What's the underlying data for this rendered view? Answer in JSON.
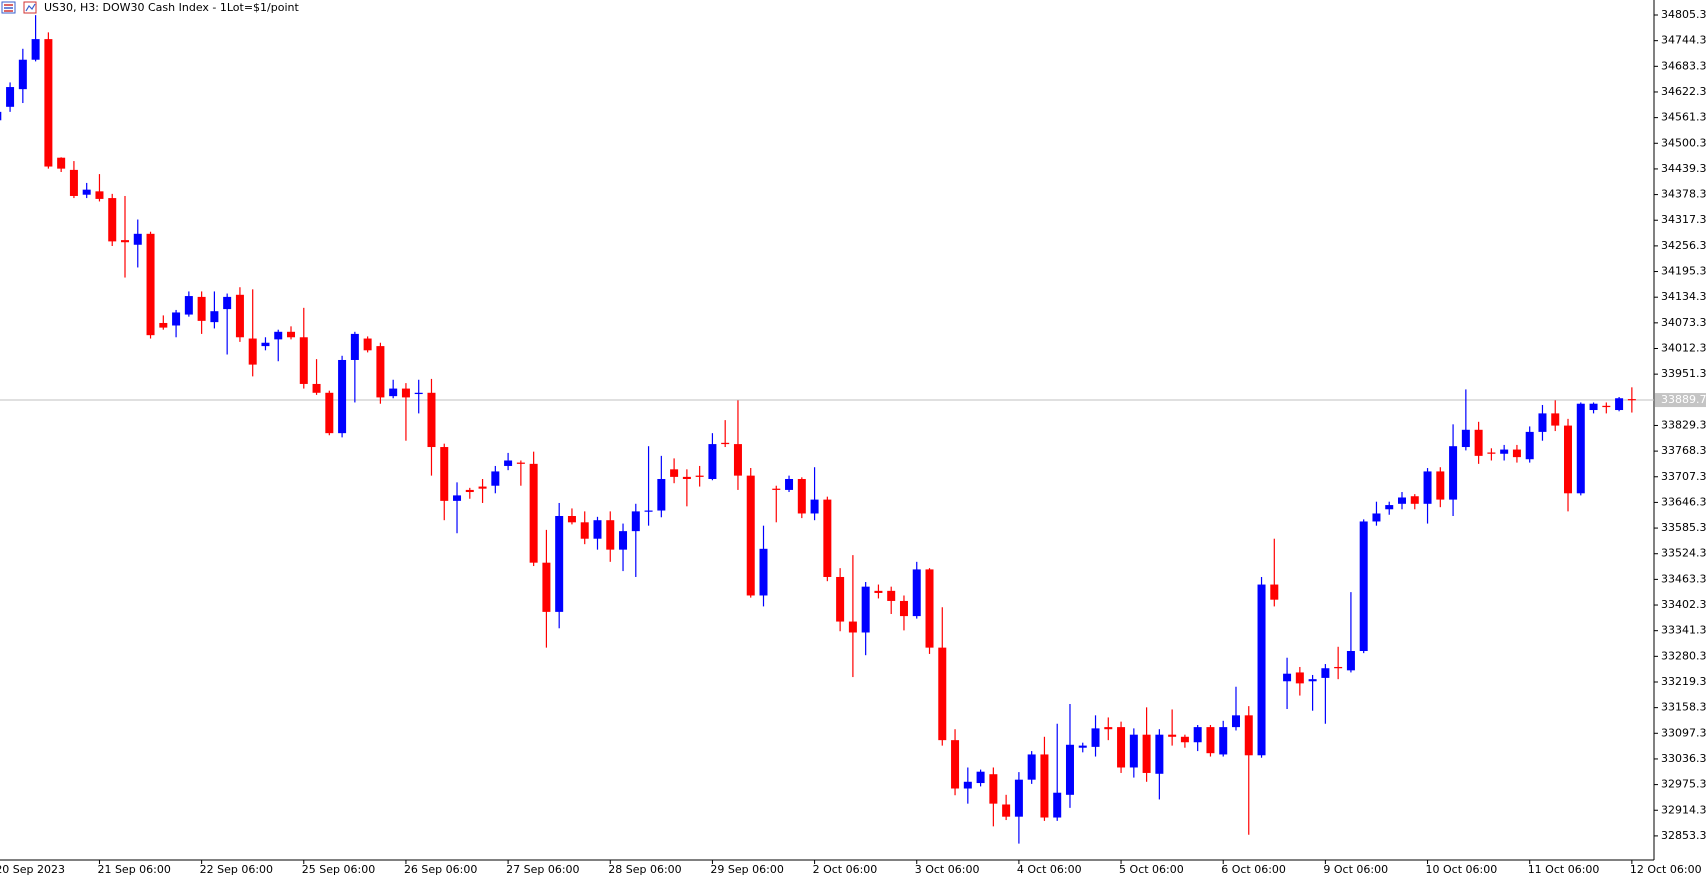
{
  "chart_data": {
    "type": "candlestick",
    "title": "US30, H3:  DOW30 Cash Index - 1Lot=$1/point",
    "up_color": "#0000ff",
    "down_color": "#ff0000",
    "last_price": 33889.7,
    "ylim": [
      32796,
      34841
    ],
    "yticks": [
      34805.3,
      34744.3,
      34683.3,
      34622.3,
      34561.3,
      34500.3,
      34439.3,
      34378.3,
      34317.3,
      34256.3,
      34195.3,
      34134.3,
      34073.3,
      34012.3,
      33951.3,
      33829.3,
      33768.3,
      33707.3,
      33646.3,
      33585.3,
      33524.3,
      33463.3,
      33402.3,
      33341.3,
      33280.3,
      33219.3,
      33158.3,
      33097.3,
      33036.3,
      32975.3,
      32914.3,
      32853.3
    ],
    "categories": [
      "20 Sep 2023",
      null,
      null,
      null,
      null,
      null,
      null,
      null,
      "21 Sep 06:00",
      null,
      null,
      null,
      null,
      null,
      null,
      null,
      "22 Sep 06:00",
      null,
      null,
      null,
      null,
      null,
      null,
      null,
      "25 Sep 06:00",
      null,
      null,
      null,
      null,
      null,
      null,
      null,
      "26 Sep 06:00",
      null,
      null,
      null,
      null,
      null,
      null,
      null,
      "27 Sep 06:00",
      null,
      null,
      null,
      null,
      null,
      null,
      null,
      "28 Sep 06:00",
      null,
      null,
      null,
      null,
      null,
      null,
      null,
      "29 Sep 06:00",
      null,
      null,
      null,
      null,
      null,
      null,
      null,
      "2 Oct 06:00",
      null,
      null,
      null,
      null,
      null,
      null,
      null,
      "3 Oct 06:00",
      null,
      null,
      null,
      null,
      null,
      null,
      null,
      "4 Oct 06:00",
      null,
      null,
      null,
      null,
      null,
      null,
      null,
      "5 Oct 06:00",
      null,
      null,
      null,
      null,
      null,
      null,
      null,
      "6 Oct 06:00",
      null,
      null,
      null,
      null,
      null,
      null,
      null,
      "9 Oct 06:00",
      null,
      null,
      null,
      null,
      null,
      null,
      null,
      "10 Oct 06:00",
      null,
      null,
      null,
      null,
      null,
      null,
      null,
      "11 Oct 06:00",
      null,
      null,
      null,
      null,
      null,
      null,
      null,
      "12 Oct 06:00"
    ],
    "open": [
      34555,
      34587,
      34629,
      34699,
      34748,
      34466,
      34437,
      34378,
      34386,
      34370,
      34270,
      34259,
      34285,
      34073,
      34067,
      34093,
      34135,
      34075,
      34106,
      34140,
      34036,
      34018,
      34034,
      34052,
      34039,
      33928,
      33907,
      33811,
      33985,
      34036,
      34018,
      33899,
      33917,
      33904,
      33907,
      33778,
      33650,
      33676,
      33684,
      33686,
      33733,
      33741,
      33738,
      33503,
      33386,
      33614,
      33599,
      33560,
      33604,
      33534,
      33578,
      33625,
      33627,
      33725,
      33707,
      33710,
      33702,
      33788,
      33785,
      33710,
      33425,
      33679,
      33676,
      33702,
      33620,
      33653,
      33469,
      33363,
      33337,
      33436,
      33436,
      33412,
      33376,
      33487,
      33301,
      33081,
      32966,
      32979,
      33000,
      32928,
      32899,
      32987,
      33047,
      32897,
      32951,
      33063,
      33065,
      33112,
      33112,
      33016,
      33094,
      33001,
      33094,
      33089,
      33076,
      33112,
      33047,
      33112,
      33140,
      33045,
      33451,
      33221,
      33242,
      33221,
      33229,
      33255,
      33247,
      33293,
      33601,
      33630,
      33643,
      33661,
      33643,
      33720,
      33653,
      33778,
      33819,
      33765,
      33762,
      33772,
      33749,
      33814,
      33858,
      33829,
      33668,
      33866,
      33876,
      33866,
      33892
    ],
    "high": [
      34585,
      34645,
      34725,
      34805,
      34764,
      34467,
      34458,
      34406,
      34427,
      34380,
      34375,
      34319,
      34290,
      34091,
      34104,
      34148,
      34148,
      34148,
      34143,
      34158,
      34153,
      34039,
      34057,
      34065,
      34109,
      33987,
      33912,
      33995,
      34052,
      34041,
      34026,
      33938,
      33930,
      33938,
      33940,
      33786,
      33694,
      33681,
      33702,
      33733,
      33764,
      33746,
      33767,
      33581,
      33645,
      33632,
      33625,
      33612,
      33625,
      33596,
      33643,
      33780,
      33757,
      33751,
      33725,
      33733,
      33811,
      33842,
      33889,
      33728,
      33591,
      33686,
      33710,
      33706,
      33730,
      33660,
      33490,
      33521,
      33457,
      33451,
      33446,
      33425,
      33505,
      33490,
      33397,
      33107,
      33016,
      33011,
      33016,
      32951,
      33005,
      33055,
      33089,
      33120,
      33167,
      33075,
      33140,
      33135,
      33125,
      33109,
      33159,
      33107,
      33154,
      33094,
      33117,
      33117,
      33127,
      33208,
      33162,
      33469,
      33560,
      33277,
      33255,
      33236,
      33262,
      33303,
      33433,
      33606,
      33648,
      33648,
      33671,
      33666,
      33728,
      33730,
      33832,
      33915,
      33838,
      33775,
      33783,
      33783,
      33827,
      33878,
      33889,
      33845,
      33884,
      33884,
      33884,
      33897,
      33920
    ],
    "low": [
      34512,
      34575,
      34596,
      34695,
      34440,
      34432,
      34370,
      34370,
      34362,
      34256,
      34181,
      34205,
      34036,
      34057,
      34039,
      34088,
      34047,
      34060,
      33998,
      34028,
      33946,
      34008,
      33982,
      34034,
      33917,
      33902,
      33806,
      33801,
      33884,
      34003,
      33881,
      33894,
      33793,
      33858,
      33710,
      33604,
      33573,
      33655,
      33645,
      33668,
      33723,
      33686,
      33495,
      33301,
      33347,
      33594,
      33547,
      33534,
      33505,
      33483,
      33469,
      33591,
      33611,
      33692,
      33637,
      33684,
      33699,
      33778,
      33676,
      33420,
      33399,
      33599,
      33671,
      33609,
      33604,
      33459,
      33340,
      33231,
      33283,
      33418,
      33381,
      33342,
      33370,
      33286,
      33068,
      32950,
      32930,
      32971,
      32876,
      32891,
      32835,
      32977,
      32889,
      32889,
      32920,
      33052,
      33042,
      33081,
      33003,
      32992,
      32982,
      32940,
      33068,
      33063,
      33055,
      33042,
      33042,
      33104,
      32856,
      33039,
      33399,
      33155,
      33187,
      33151,
      33120,
      33226,
      33242,
      33288,
      33591,
      33617,
      33630,
      33630,
      33596,
      33635,
      33614,
      33770,
      33738,
      33746,
      33746,
      33741,
      33741,
      33793,
      33816,
      33625,
      33663,
      33858,
      33858,
      33863,
      33860
    ],
    "close": [
      34575,
      34634,
      34699,
      34748,
      34445,
      34440,
      34375,
      34390,
      34368,
      34267,
      34265,
      34285,
      34044,
      34062,
      34098,
      34137,
      34078,
      34101,
      34135,
      34039,
      33974,
      34026,
      34052,
      34039,
      33928,
      33907,
      33811,
      33985,
      34047,
      34008,
      33896,
      33917,
      33896,
      33907,
      33778,
      33650,
      33663,
      33671,
      33679,
      33720,
      33746,
      33738,
      33503,
      33386,
      33614,
      33599,
      33560,
      33604,
      33534,
      33578,
      33625,
      33627,
      33702,
      33707,
      33702,
      33707,
      33785,
      33785,
      33710,
      33425,
      33536,
      33676,
      33702,
      33620,
      33653,
      33469,
      33363,
      33337,
      33446,
      33431,
      33412,
      33376,
      33487,
      33301,
      33081,
      32966,
      32982,
      33006,
      32930,
      32899,
      32987,
      33047,
      32897,
      32956,
      33070,
      33068,
      33109,
      33107,
      33016,
      33094,
      33003,
      33094,
      33089,
      33076,
      33112,
      33050,
      33112,
      33140,
      33045,
      33451,
      33415,
      33239,
      33216,
      33226,
      33252,
      33252,
      33293,
      33601,
      33620,
      33640,
      33658,
      33643,
      33720,
      33653,
      33780,
      33819,
      33757,
      33762,
      33772,
      33754,
      33814,
      33858,
      33829,
      33668,
      33881,
      33881,
      33873,
      33894,
      33889.7
    ]
  }
}
